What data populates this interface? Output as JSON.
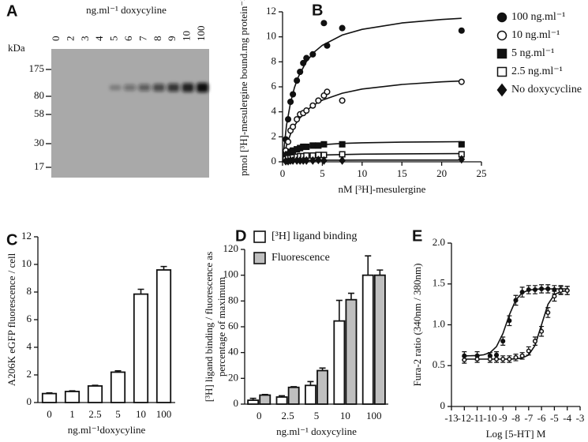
{
  "blot": {
    "label": "A",
    "title": "ng.ml⁻¹ doxycyline",
    "unit": "kDa",
    "lanes": [
      "0",
      "2",
      "3",
      "4",
      "5",
      "6",
      "7",
      "8",
      "9",
      "10",
      "100"
    ],
    "markers": [
      175,
      80,
      58,
      30,
      17
    ]
  },
  "chart_data": [
    {
      "type": "scatter",
      "label": "B",
      "xlabel": "nM [³H]-mesulergine",
      "ylabel": "pmol [³H]-mesulergine bound.mg protein⁻¹",
      "xlim": [
        0,
        25
      ],
      "xticks": [
        0,
        5,
        10,
        15,
        20,
        25
      ],
      "ylim": [
        0,
        12
      ],
      "yticks": [
        0,
        2,
        4,
        6,
        8,
        10,
        12
      ],
      "fit_x": [
        0,
        0.5,
        1,
        1.5,
        2,
        3,
        4,
        5,
        7.5,
        10,
        15,
        20,
        22.5
      ],
      "series": [
        {
          "name": "100 ng.ml⁻¹",
          "marker": "circle-filled",
          "x": [
            0.4,
            0.7,
            1.0,
            1.3,
            1.8,
            2.2,
            2.6,
            3.0,
            3.8,
            5.2,
            5.6,
            7.5,
            22.5
          ],
          "values": [
            1.8,
            3.4,
            4.8,
            5.4,
            6.5,
            7.2,
            7.9,
            8.3,
            8.6,
            11.1,
            9.3,
            10.7,
            10.5
          ],
          "fit_values": [
            0,
            2.93,
            4.73,
            5.95,
            6.83,
            8.02,
            8.79,
            9.32,
            10.14,
            10.6,
            11.11,
            11.39,
            11.48
          ]
        },
        {
          "name": "10 ng.ml⁻¹",
          "marker": "circle-open",
          "x": [
            0.4,
            0.7,
            1.0,
            1.3,
            1.8,
            2.2,
            2.6,
            3.0,
            3.8,
            4.5,
            5.2,
            5.6,
            7.5,
            22.5
          ],
          "values": [
            0.9,
            1.6,
            2.5,
            2.8,
            3.4,
            3.8,
            3.9,
            4.1,
            4.5,
            4.9,
            5.3,
            5.6,
            4.9,
            6.4
          ],
          "fit_values": [
            0,
            1.31,
            2.22,
            2.88,
            3.38,
            4.1,
            4.58,
            4.93,
            5.49,
            5.82,
            6.19,
            6.4,
            6.47
          ]
        },
        {
          "name": "5 ng.ml⁻¹",
          "marker": "square-filled",
          "x": [
            0.4,
            0.7,
            1.0,
            1.3,
            1.8,
            2.2,
            2.6,
            3.0,
            3.8,
            4.5,
            5.2,
            7.5,
            22.5
          ],
          "values": [
            0.4,
            0.6,
            0.8,
            0.9,
            1.0,
            1.1,
            1.2,
            1.2,
            1.3,
            1.3,
            1.4,
            1.4,
            1.4
          ],
          "fit_values": [
            0,
            0.5,
            0.77,
            0.94,
            1.06,
            1.21,
            1.31,
            1.37,
            1.47,
            1.52,
            1.57,
            1.6,
            1.61
          ]
        },
        {
          "name": "2.5 ng.ml⁻¹",
          "marker": "square-open",
          "x": [
            0.4,
            0.7,
            1.0,
            1.3,
            1.8,
            2.2,
            2.6,
            3.0,
            3.8,
            4.5,
            5.2,
            7.5,
            22.5
          ],
          "values": [
            0.2,
            0.3,
            0.3,
            0.35,
            0.4,
            0.45,
            0.45,
            0.5,
            0.5,
            0.55,
            0.55,
            0.6,
            0.6
          ],
          "fit_values": [
            0,
            0.18,
            0.28,
            0.35,
            0.4,
            0.47,
            0.51,
            0.54,
            0.58,
            0.61,
            0.64,
            0.65,
            0.66
          ]
        },
        {
          "name": "No doxycycline",
          "marker": "diamond",
          "x": [
            0.4,
            0.7,
            1.0,
            1.3,
            1.8,
            2.2,
            2.6,
            3.0,
            3.8,
            4.5,
            5.2,
            7.5,
            22.5
          ],
          "values": [
            0.05,
            0.05,
            0.1,
            0.1,
            0.1,
            0.1,
            0.1,
            0.1,
            0.1,
            0.15,
            0.1,
            0.1,
            0.2
          ],
          "fit_values": [
            0,
            0.05,
            0.08,
            0.09,
            0.1,
            0.11,
            0.12,
            0.13,
            0.13,
            0.14,
            0.14,
            0.14,
            0.14
          ]
        }
      ]
    },
    {
      "type": "bar",
      "label": "C",
      "xlabel": "ng.ml⁻¹doxycyline",
      "ylabel": "A206K eGFP fluorescence / cell",
      "categories": [
        "0",
        "1",
        "2.5",
        "5",
        "10",
        "100"
      ],
      "values": [
        0.65,
        0.8,
        1.2,
        2.2,
        7.85,
        9.6
      ],
      "errors": [
        0.05,
        0.05,
        0.05,
        0.1,
        0.35,
        0.25
      ],
      "color": "#ffffff",
      "ylim": [
        0,
        12
      ],
      "yticks": [
        0,
        2,
        4,
        6,
        8,
        10,
        12
      ]
    },
    {
      "type": "bar",
      "label": "D",
      "xlabel": "ng.ml⁻¹ doxycyline",
      "ylabel": [
        "[³H] ligand binding / fluorescence as",
        "percentage of maximum"
      ],
      "categories": [
        "0",
        "2.5",
        "5",
        "10",
        "100"
      ],
      "series": [
        {
          "name": "[³H] ligand binding",
          "color": "#ffffff",
          "values": [
            3,
            5.5,
            14.5,
            64.5,
            100
          ],
          "errors": [
            1.5,
            1,
            3,
            16,
            15
          ]
        },
        {
          "name": "Fluorescence",
          "color": "#bfbfbf",
          "values": [
            7,
            13,
            26,
            81,
            100
          ],
          "errors": [
            0.5,
            0.5,
            2,
            5,
            4
          ]
        }
      ],
      "ylim": [
        0,
        120
      ],
      "yticks": [
        0,
        20,
        40,
        60,
        80,
        100,
        120
      ]
    },
    {
      "type": "scatter",
      "label": "E",
      "xlabel": "Log [5-HT] M",
      "ylabel": "Fura-2 ratio (340nm / 380nm)",
      "xlim": [
        -13,
        -3
      ],
      "xticks": [
        -13,
        -12,
        -11,
        -10,
        -9,
        -8,
        -7,
        -6,
        -5,
        -4,
        -3
      ],
      "ylim": [
        0,
        2
      ],
      "yticks": [
        0,
        0.5,
        {
          "value": 1,
          "label": "1.0"
        },
        1.5,
        {
          "value": 2,
          "label": "2.0"
        }
      ],
      "fit_x": [
        -12,
        -11.5,
        -11,
        -10.5,
        -10,
        -9.5,
        -9,
        -8.5,
        -8,
        -7.5,
        -7,
        -6.5,
        -6,
        -5.5,
        -5,
        -4.5,
        -4
      ],
      "series": [
        {
          "marker": "circle-filled",
          "x": [
            -12,
            -11,
            -10,
            -9.5,
            -9,
            -8.5,
            -8,
            -7.5,
            -7,
            -6.5,
            -6,
            -5.5,
            -5,
            -4.5,
            -4
          ],
          "values": [
            0.62,
            0.62,
            0.62,
            0.63,
            0.8,
            1.05,
            1.3,
            1.4,
            1.43,
            1.43,
            1.44,
            1.44,
            1.43,
            1.43,
            1.42
          ],
          "errors": [
            0.05,
            0.05,
            0.04,
            0.04,
            0.05,
            0.06,
            0.06,
            0.06,
            0.05,
            0.05,
            0.05,
            0.05,
            0.05,
            0.05,
            0.05
          ],
          "fit_values": [
            0.62,
            0.621,
            0.624,
            0.633,
            0.659,
            0.732,
            0.893,
            1.123,
            1.303,
            1.391,
            1.424,
            1.435,
            1.439,
            1.44,
            1.44,
            1.44,
            1.44
          ]
        },
        {
          "marker": "circle-open",
          "x": [
            -12,
            -11,
            -10,
            -9.5,
            -9,
            -8.5,
            -8,
            -7.5,
            -7,
            -6.5,
            -6,
            -5.5,
            -5,
            -4.5,
            -4
          ],
          "values": [
            0.57,
            0.58,
            0.58,
            0.58,
            0.58,
            0.58,
            0.6,
            0.62,
            0.68,
            0.8,
            0.92,
            1.15,
            1.35,
            1.42,
            1.42
          ],
          "errors": [
            0.04,
            0.04,
            0.04,
            0.04,
            0.04,
            0.04,
            0.04,
            0.04,
            0.05,
            0.05,
            0.06,
            0.06,
            0.06,
            0.05,
            0.05
          ],
          "fit_values": [
            0.58,
            0.58,
            0.58,
            0.58,
            0.58,
            0.58,
            0.58,
            0.581,
            0.583,
            0.593,
            0.63,
            0.75,
            1.0,
            1.25,
            1.37,
            1.407,
            1.417
          ]
        }
      ]
    }
  ]
}
